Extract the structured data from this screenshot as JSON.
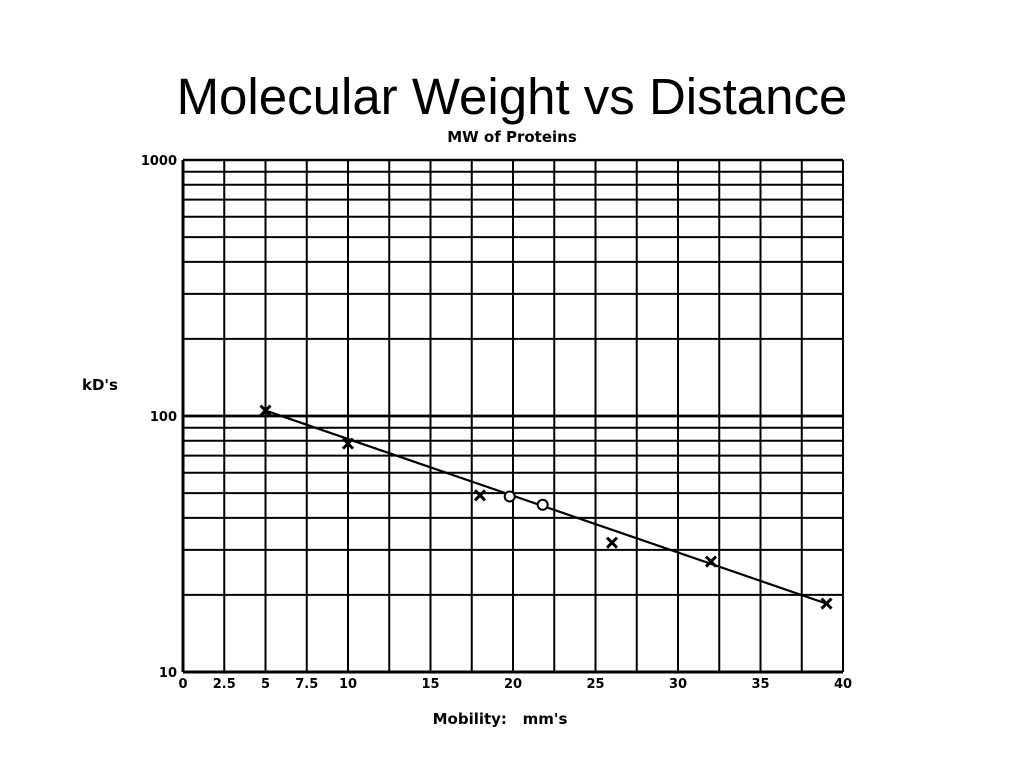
{
  "slide": {
    "title": "Molecular Weight vs Distance"
  },
  "chart_data": {
    "type": "scatter",
    "title": "MW of Proteins",
    "xlabel": "Mobility:   mm's",
    "ylabel": "kD's",
    "x_scale": "linear",
    "y_scale": "log",
    "xlim": [
      0,
      40
    ],
    "ylim": [
      10,
      1000
    ],
    "x_ticks": [
      0,
      2.5,
      5,
      7.5,
      10,
      15,
      20,
      25,
      30,
      35,
      40
    ],
    "x_tick_labels": [
      "0",
      "2.5",
      "5",
      "7.5",
      "10",
      "15",
      "20",
      "25",
      "30",
      "35",
      "40"
    ],
    "y_ticks": [
      10,
      100,
      1000
    ],
    "y_tick_labels": [
      "10",
      "100",
      "1000"
    ],
    "grid": true,
    "legend": "none",
    "series": [
      {
        "marker": "x",
        "points": [
          {
            "x": 5,
            "y": 105
          },
          {
            "x": 10,
            "y": 78
          },
          {
            "x": 18,
            "y": 49
          },
          {
            "x": 26,
            "y": 32
          },
          {
            "x": 32,
            "y": 27
          },
          {
            "x": 39,
            "y": 18.5
          }
        ]
      },
      {
        "marker": "circle",
        "points": [
          {
            "x": 19.8,
            "y": 48.5
          },
          {
            "x": 21.8,
            "y": 45
          }
        ]
      }
    ],
    "fit_line": {
      "x": [
        5,
        39
      ],
      "y": [
        105,
        18.5
      ]
    }
  },
  "colors": {
    "ink": "#000000",
    "background": "#ffffff"
  }
}
